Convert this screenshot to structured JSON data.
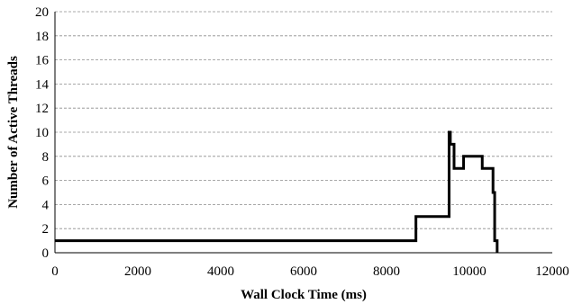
{
  "chart_data": {
    "type": "line",
    "title": "",
    "xlabel": "Wall Clock Time (ms)",
    "ylabel": "Number of Active Threads",
    "xlim": [
      0,
      12000
    ],
    "ylim": [
      0,
      20
    ],
    "x_ticks": [
      0,
      2000,
      4000,
      6000,
      8000,
      10000,
      12000
    ],
    "y_ticks": [
      0,
      2,
      4,
      6,
      8,
      10,
      12,
      14,
      16,
      18,
      20
    ],
    "grid": "horizontal dashed",
    "line_color": "#000000",
    "series": [
      {
        "x": [
          0,
          8710,
          8710,
          9510,
          9510,
          9540,
          9540,
          9630,
          9630,
          9860,
          9860,
          10310,
          10310,
          10570,
          10570,
          10610,
          10610,
          10670,
          10670
        ],
        "y": [
          1,
          1,
          3,
          3,
          10,
          10,
          9,
          9,
          7,
          7,
          8,
          8,
          7,
          7,
          5,
          5,
          1,
          1,
          0
        ]
      }
    ]
  }
}
